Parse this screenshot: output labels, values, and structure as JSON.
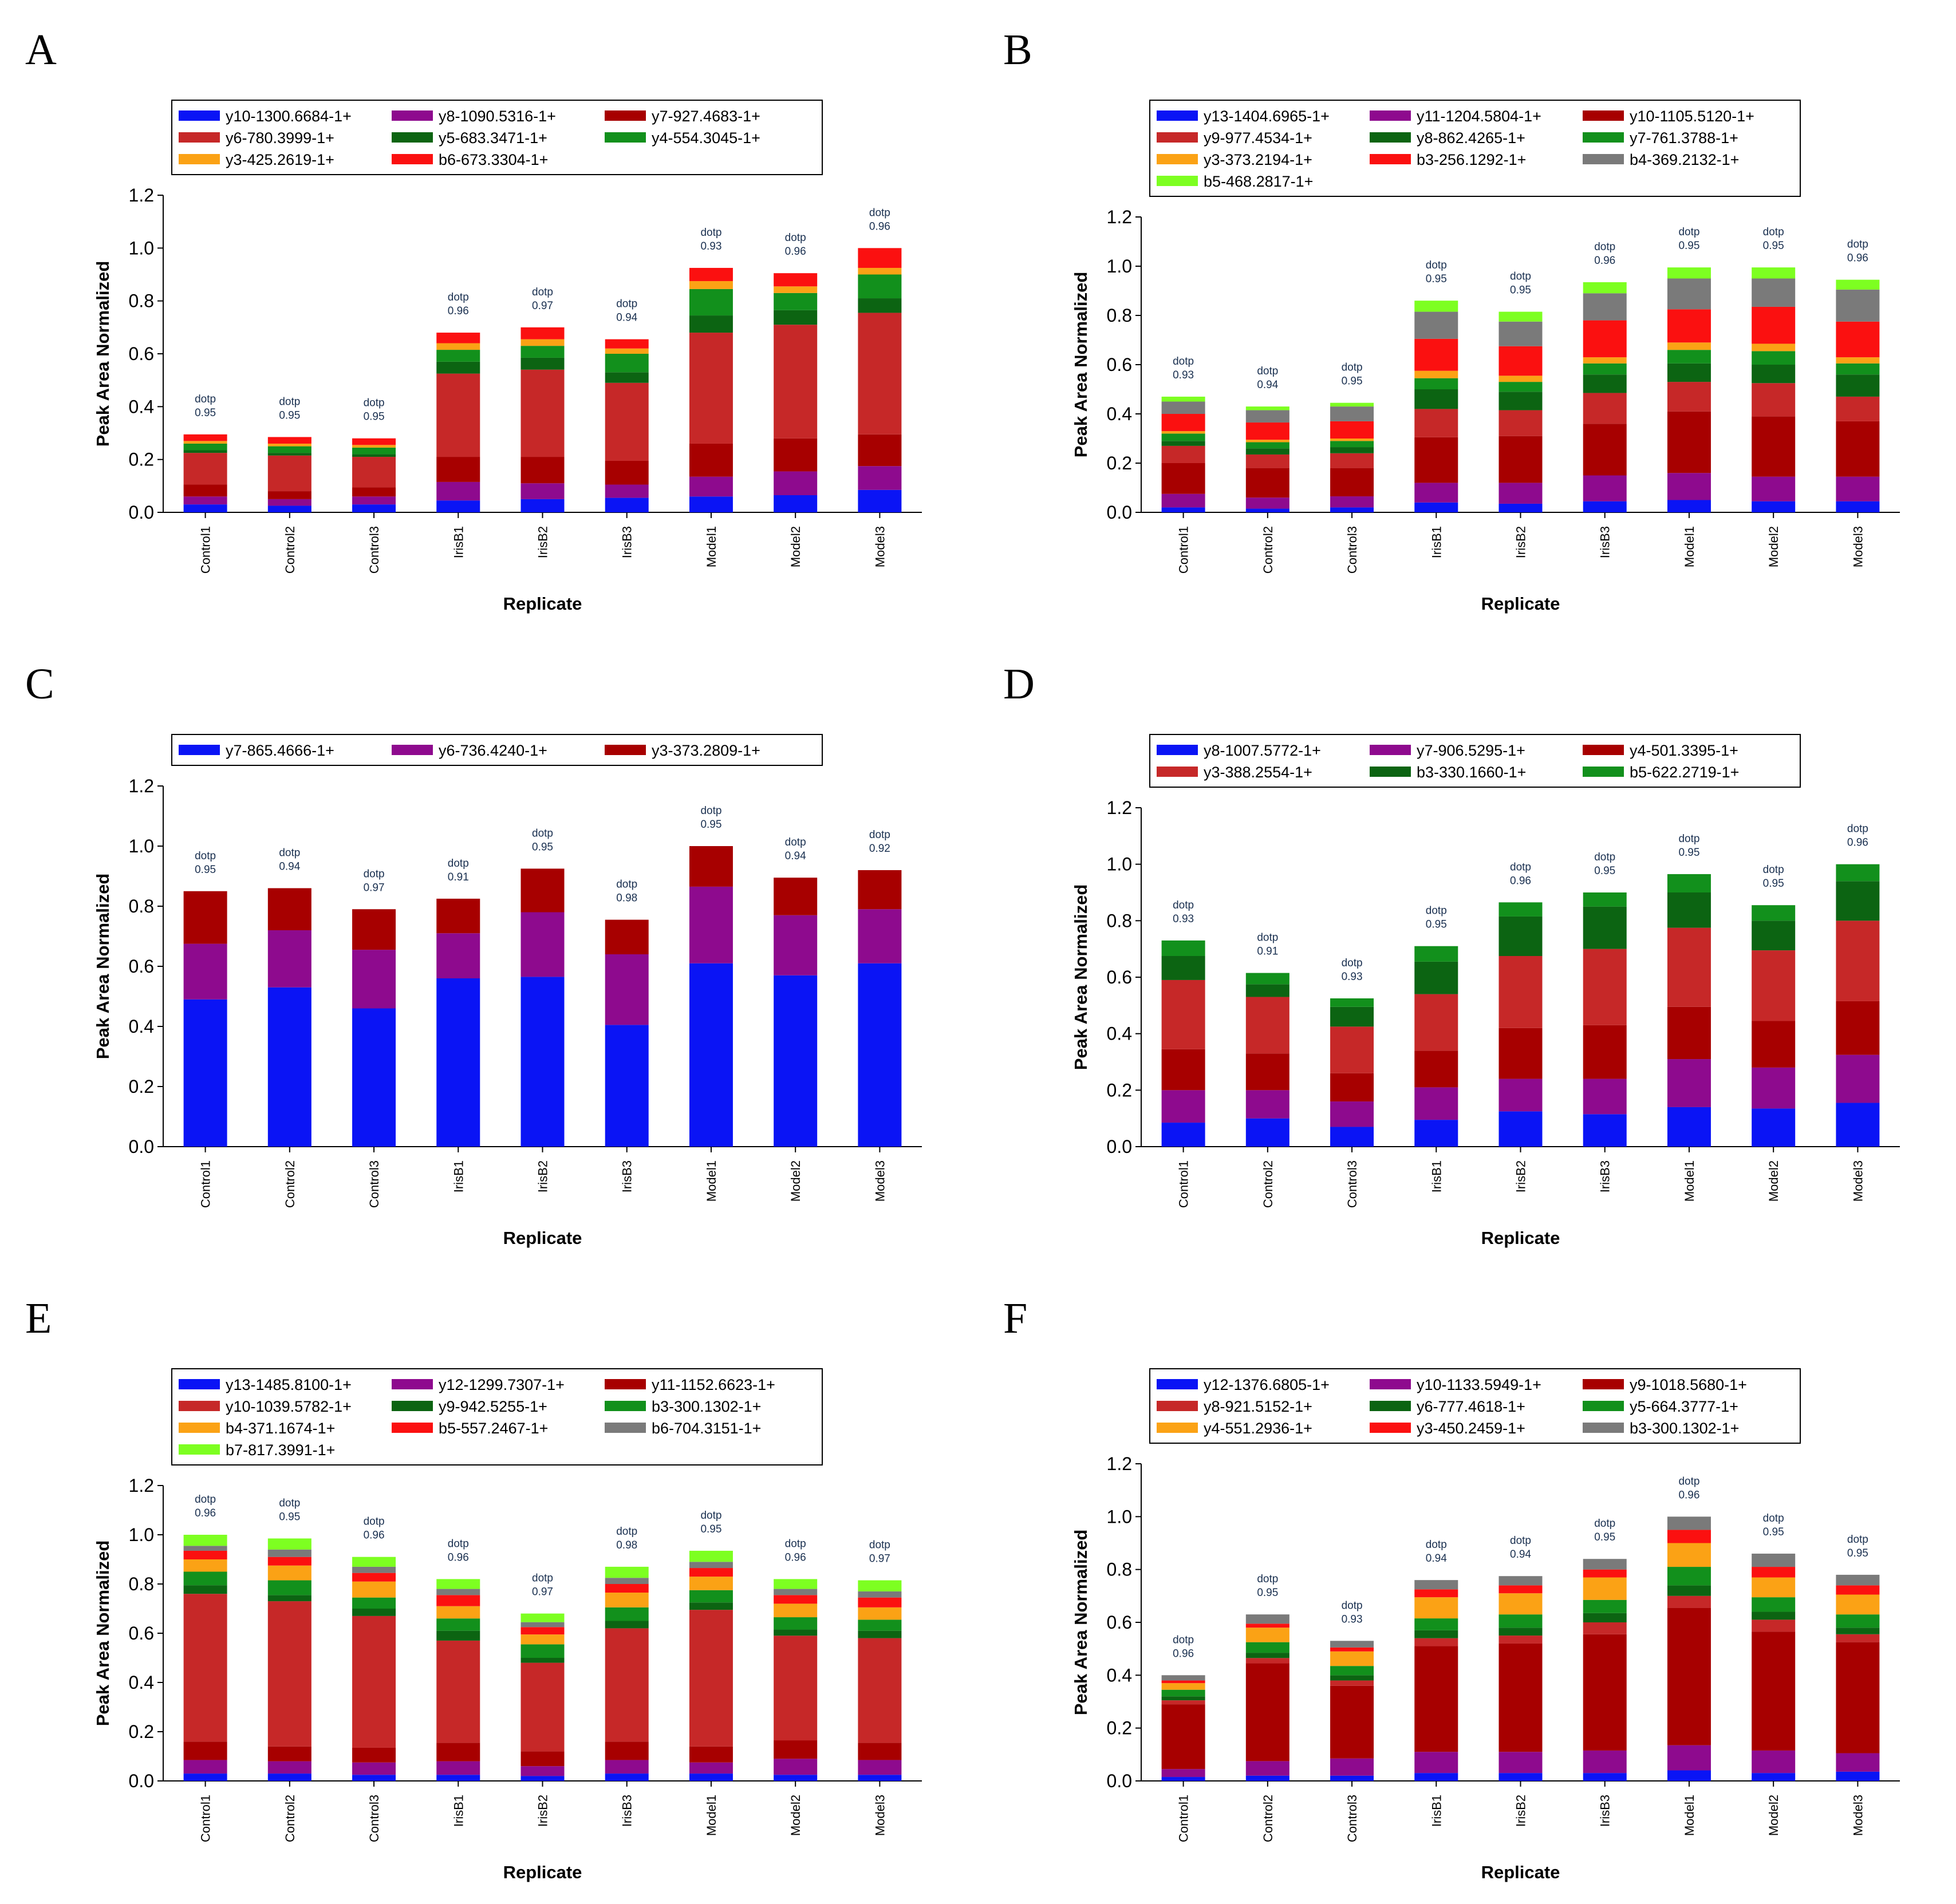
{
  "figure": {
    "replicates": [
      "Control1",
      "Control2",
      "Control3",
      "IrisB1",
      "IrisB2",
      "IrisB3",
      "Model1",
      "Model2",
      "Model3"
    ]
  },
  "chart_data": [
    {
      "panel": "A",
      "type": "bar",
      "stacked": true,
      "xlabel": "Replicate",
      "ylabel": "Peak Area Normalized",
      "ylim": [
        0,
        1.2
      ],
      "yticks": [
        "0.0",
        "0.2",
        "0.4",
        "0.6",
        "0.8",
        "1.0",
        "1.2"
      ],
      "categories": [
        "Control1",
        "Control2",
        "Control3",
        "IrisB1",
        "IrisB2",
        "IrisB3",
        "Model1",
        "Model2",
        "Model3"
      ],
      "dotp": [
        "0.95",
        "0.95",
        "0.95",
        "0.96",
        "0.97",
        "0.94",
        "0.93",
        "0.96",
        "0.96"
      ],
      "series": [
        {
          "name": "y10-1300.6684-1+",
          "color": "#0a14f5",
          "values": [
            0.03,
            0.025,
            0.03,
            0.045,
            0.05,
            0.055,
            0.06,
            0.065,
            0.085
          ]
        },
        {
          "name": "y8-1090.5316-1+",
          "color": "#8e0a8e",
          "values": [
            0.03,
            0.025,
            0.03,
            0.07,
            0.06,
            0.05,
            0.075,
            0.09,
            0.09
          ]
        },
        {
          "name": "y7-927.4683-1+",
          "color": "#a70000",
          "values": [
            0.045,
            0.03,
            0.035,
            0.095,
            0.1,
            0.09,
            0.125,
            0.125,
            0.12
          ]
        },
        {
          "name": "y6-780.3999-1+",
          "color": "#c62828",
          "values": [
            0.12,
            0.135,
            0.115,
            0.315,
            0.33,
            0.295,
            0.42,
            0.43,
            0.46
          ]
        },
        {
          "name": "y5-683.3471-1+",
          "color": "#0c6412",
          "values": [
            0.01,
            0.01,
            0.01,
            0.045,
            0.045,
            0.04,
            0.065,
            0.055,
            0.055
          ]
        },
        {
          "name": "y4-554.3045-1+",
          "color": "#12901c",
          "values": [
            0.025,
            0.025,
            0.025,
            0.045,
            0.045,
            0.07,
            0.1,
            0.065,
            0.09
          ]
        },
        {
          "name": "y3-425.2619-1+",
          "color": "#fba215",
          "values": [
            0.01,
            0.01,
            0.01,
            0.025,
            0.025,
            0.02,
            0.03,
            0.025,
            0.025
          ]
        },
        {
          "name": "b6-673.3304-1+",
          "color": "#fb1010",
          "values": [
            0.025,
            0.025,
            0.025,
            0.04,
            0.045,
            0.035,
            0.05,
            0.05,
            0.075
          ]
        }
      ],
      "legend": {
        "rows": [
          [
            "y10-1300.6684-1+",
            "y8-1090.5316-1+",
            "y7-927.4683-1+"
          ],
          [
            "y6-780.3999-1+",
            "y5-683.3471-1+",
            "y4-554.3045-1+"
          ],
          [
            "y3-425.2619-1+",
            "b6-673.3304-1+"
          ]
        ]
      }
    },
    {
      "panel": "B",
      "type": "bar",
      "stacked": true,
      "xlabel": "Replicate",
      "ylabel": "Peak Area Normalized",
      "ylim": [
        0,
        1.2
      ],
      "yticks": [
        "0.0",
        "0.2",
        "0.4",
        "0.6",
        "0.8",
        "1.0",
        "1.2"
      ],
      "categories": [
        "Control1",
        "Control2",
        "Control3",
        "IrisB1",
        "IrisB2",
        "IrisB3",
        "Model1",
        "Model2",
        "Model3"
      ],
      "dotp": [
        "0.93",
        "0.94",
        "0.95",
        "0.95",
        "0.95",
        "0.96",
        "0.95",
        "0.95",
        "0.96"
      ],
      "series": [
        {
          "name": "y13-1404.6965-1+",
          "color": "#0a14f5",
          "values": [
            0.02,
            0.015,
            0.02,
            0.04,
            0.035,
            0.045,
            0.05,
            0.045,
            0.045
          ]
        },
        {
          "name": "y11-1204.5804-1+",
          "color": "#8e0a8e",
          "values": [
            0.055,
            0.045,
            0.045,
            0.08,
            0.085,
            0.105,
            0.11,
            0.1,
            0.1
          ]
        },
        {
          "name": "y10-1105.5120-1+",
          "color": "#a70000",
          "values": [
            0.125,
            0.12,
            0.115,
            0.185,
            0.19,
            0.21,
            0.25,
            0.245,
            0.225
          ]
        },
        {
          "name": "y9-977.4534-1+",
          "color": "#c62828",
          "values": [
            0.07,
            0.055,
            0.06,
            0.115,
            0.105,
            0.125,
            0.12,
            0.135,
            0.1
          ]
        },
        {
          "name": "y8-862.4265-1+",
          "color": "#0c6412",
          "values": [
            0.02,
            0.025,
            0.025,
            0.08,
            0.075,
            0.075,
            0.075,
            0.075,
            0.09
          ]
        },
        {
          "name": "y7-761.3788-1+",
          "color": "#12901c",
          "values": [
            0.03,
            0.025,
            0.025,
            0.045,
            0.04,
            0.045,
            0.055,
            0.055,
            0.045
          ]
        },
        {
          "name": "y3-373.2194-1+",
          "color": "#fba215",
          "values": [
            0.01,
            0.01,
            0.01,
            0.03,
            0.025,
            0.025,
            0.03,
            0.03,
            0.025
          ]
        },
        {
          "name": "b3-256.1292-1+",
          "color": "#fb1010",
          "values": [
            0.07,
            0.07,
            0.07,
            0.13,
            0.12,
            0.15,
            0.135,
            0.15,
            0.145
          ]
        },
        {
          "name": "b4-369.2132-1+",
          "color": "#7a7a7a",
          "values": [
            0.05,
            0.05,
            0.06,
            0.11,
            0.1,
            0.11,
            0.125,
            0.115,
            0.13
          ]
        },
        {
          "name": "b5-468.2817-1+",
          "color": "#7dff21",
          "values": [
            0.02,
            0.015,
            0.015,
            0.045,
            0.04,
            0.045,
            0.045,
            0.045,
            0.04
          ]
        }
      ],
      "legend": {
        "rows": [
          [
            "y13-1404.6965-1+",
            "y11-1204.5804-1+",
            "y10-1105.5120-1+"
          ],
          [
            "y9-977.4534-1+",
            "y8-862.4265-1+",
            "y7-761.3788-1+"
          ],
          [
            "y3-373.2194-1+",
            "b3-256.1292-1+",
            "b4-369.2132-1+"
          ],
          [
            "b5-468.2817-1+"
          ]
        ]
      }
    },
    {
      "panel": "C",
      "type": "bar",
      "stacked": true,
      "xlabel": "Replicate",
      "ylabel": "Peak Area Normalized",
      "ylim": [
        0,
        1.2
      ],
      "yticks": [
        "0.0",
        "0.2",
        "0.4",
        "0.6",
        "0.8",
        "1.0",
        "1.2"
      ],
      "categories": [
        "Control1",
        "Control2",
        "Control3",
        "IrisB1",
        "IrisB2",
        "IrisB3",
        "Model1",
        "Model2",
        "Model3"
      ],
      "dotp": [
        "0.95",
        "0.94",
        "0.97",
        "0.91",
        "0.95",
        "0.98",
        "0.95",
        "0.94",
        "0.92"
      ],
      "series": [
        {
          "name": "y7-865.4666-1+",
          "color": "#0a14f5",
          "values": [
            0.49,
            0.53,
            0.46,
            0.56,
            0.565,
            0.405,
            0.61,
            0.57,
            0.61
          ]
        },
        {
          "name": "y6-736.4240-1+",
          "color": "#8e0a8e",
          "values": [
            0.185,
            0.19,
            0.195,
            0.15,
            0.215,
            0.235,
            0.255,
            0.2,
            0.18
          ]
        },
        {
          "name": "y3-373.2809-1+",
          "color": "#a70000",
          "values": [
            0.175,
            0.14,
            0.135,
            0.115,
            0.145,
            0.115,
            0.135,
            0.125,
            0.13
          ]
        }
      ],
      "legend": {
        "rows": [
          [
            "y7-865.4666-1+",
            "y6-736.4240-1+",
            "y3-373.2809-1+"
          ]
        ]
      }
    },
    {
      "panel": "D",
      "type": "bar",
      "stacked": true,
      "xlabel": "Replicate",
      "ylabel": "Peak Area Normalized",
      "ylim": [
        0,
        1.2
      ],
      "yticks": [
        "0.0",
        "0.2",
        "0.4",
        "0.6",
        "0.8",
        "1.0",
        "1.2"
      ],
      "categories": [
        "Control1",
        "Control2",
        "Control3",
        "IrisB1",
        "IrisB2",
        "IrisB3",
        "Model1",
        "Model2",
        "Model3"
      ],
      "dotp": [
        "0.93",
        "0.91",
        "0.93",
        "0.95",
        "0.96",
        "0.95",
        "0.95",
        "0.95",
        "0.96"
      ],
      "series": [
        {
          "name": "y8-1007.5772-1+",
          "color": "#0a14f5",
          "values": [
            0.085,
            0.1,
            0.07,
            0.095,
            0.125,
            0.115,
            0.14,
            0.135,
            0.155
          ]
        },
        {
          "name": "y7-906.5295-1+",
          "color": "#8e0a8e",
          "values": [
            0.115,
            0.1,
            0.09,
            0.115,
            0.115,
            0.125,
            0.17,
            0.145,
            0.17
          ]
        },
        {
          "name": "y4-501.3395-1+",
          "color": "#a70000",
          "values": [
            0.145,
            0.13,
            0.1,
            0.13,
            0.18,
            0.19,
            0.185,
            0.165,
            0.19
          ]
        },
        {
          "name": "y3-388.2554-1+",
          "color": "#c62828",
          "values": [
            0.245,
            0.2,
            0.165,
            0.2,
            0.255,
            0.27,
            0.28,
            0.25,
            0.285
          ]
        },
        {
          "name": "b3-330.1660-1+",
          "color": "#0c6412",
          "values": [
            0.085,
            0.045,
            0.07,
            0.115,
            0.14,
            0.15,
            0.125,
            0.105,
            0.14
          ]
        },
        {
          "name": "b5-622.2719-1+",
          "color": "#12901c",
          "values": [
            0.055,
            0.04,
            0.03,
            0.055,
            0.05,
            0.05,
            0.065,
            0.055,
            0.06
          ]
        }
      ],
      "legend": {
        "rows": [
          [
            "y8-1007.5772-1+",
            "y7-906.5295-1+",
            "y4-501.3395-1+"
          ],
          [
            "y3-388.2554-1+",
            "b3-330.1660-1+",
            "b5-622.2719-1+"
          ]
        ]
      }
    },
    {
      "panel": "E",
      "type": "bar",
      "stacked": true,
      "xlabel": "Replicate",
      "ylabel": "Peak Area Normalized",
      "ylim": [
        0,
        1.2
      ],
      "yticks": [
        "0.0",
        "0.2",
        "0.4",
        "0.6",
        "0.8",
        "1.0",
        "1.2"
      ],
      "categories": [
        "Control1",
        "Control2",
        "Control3",
        "IrisB1",
        "IrisB2",
        "IrisB3",
        "Model1",
        "Model2",
        "Model3"
      ],
      "dotp": [
        "0.96",
        "0.95",
        "0.96",
        "0.96",
        "0.97",
        "0.98",
        "0.95",
        "0.96",
        "0.97"
      ],
      "series": [
        {
          "name": "y13-1485.8100-1+",
          "color": "#0a14f5",
          "values": [
            0.03,
            0.03,
            0.025,
            0.025,
            0.02,
            0.03,
            0.03,
            0.025,
            0.025
          ]
        },
        {
          "name": "y12-1299.7307-1+",
          "color": "#8e0a8e",
          "values": [
            0.055,
            0.05,
            0.05,
            0.055,
            0.04,
            0.055,
            0.045,
            0.065,
            0.06
          ]
        },
        {
          "name": "y11-1152.6623-1+",
          "color": "#a70000",
          "values": [
            0.075,
            0.06,
            0.06,
            0.075,
            0.06,
            0.075,
            0.065,
            0.075,
            0.07
          ]
        },
        {
          "name": "y10-1039.5782-1+",
          "color": "#c62828",
          "values": [
            0.6,
            0.59,
            0.535,
            0.415,
            0.36,
            0.46,
            0.555,
            0.425,
            0.425
          ]
        },
        {
          "name": "y9-942.5255-1+",
          "color": "#0c6412",
          "values": [
            0.035,
            0.025,
            0.03,
            0.04,
            0.02,
            0.03,
            0.03,
            0.025,
            0.03
          ]
        },
        {
          "name": "b3-300.1302-1+",
          "color": "#12901c",
          "values": [
            0.055,
            0.06,
            0.045,
            0.05,
            0.055,
            0.055,
            0.05,
            0.05,
            0.045
          ]
        },
        {
          "name": "b4-371.1674-1+",
          "color": "#fba215",
          "values": [
            0.05,
            0.06,
            0.065,
            0.05,
            0.04,
            0.06,
            0.055,
            0.055,
            0.05
          ]
        },
        {
          "name": "b5-557.2467-1+",
          "color": "#fb1010",
          "values": [
            0.035,
            0.035,
            0.035,
            0.045,
            0.03,
            0.035,
            0.035,
            0.035,
            0.04
          ]
        },
        {
          "name": "b6-704.3151-1+",
          "color": "#7a7a7a",
          "values": [
            0.02,
            0.03,
            0.025,
            0.025,
            0.02,
            0.025,
            0.025,
            0.025,
            0.025
          ]
        },
        {
          "name": "b7-817.3991-1+",
          "color": "#7dff21",
          "values": [
            0.045,
            0.045,
            0.04,
            0.04,
            0.035,
            0.045,
            0.045,
            0.04,
            0.045
          ]
        }
      ],
      "legend": {
        "rows": [
          [
            "y13-1485.8100-1+",
            "y12-1299.7307-1+",
            "y11-1152.6623-1+"
          ],
          [
            "y10-1039.5782-1+",
            "y9-942.5255-1+",
            "b3-300.1302-1+"
          ],
          [
            "b4-371.1674-1+",
            "b5-557.2467-1+",
            "b6-704.3151-1+"
          ],
          [
            "b7-817.3991-1+"
          ]
        ]
      }
    },
    {
      "panel": "F",
      "type": "bar",
      "stacked": true,
      "xlabel": "Replicate",
      "ylabel": "Peak Area Normalized",
      "ylim": [
        0,
        1.2
      ],
      "yticks": [
        "0.0",
        "0.2",
        "0.4",
        "0.6",
        "0.8",
        "1.0",
        "1.2"
      ],
      "categories": [
        "Control1",
        "Control2",
        "Control3",
        "IrisB1",
        "IrisB2",
        "IrisB3",
        "Model1",
        "Model2",
        "Model3"
      ],
      "dotp": [
        "0.96",
        "0.95",
        "0.93",
        "0.94",
        "0.94",
        "0.95",
        "0.96",
        "0.95",
        "0.95"
      ],
      "series": [
        {
          "name": "y12-1376.6805-1+",
          "color": "#0a14f5",
          "values": [
            0.015,
            0.02,
            0.02,
            0.03,
            0.03,
            0.03,
            0.04,
            0.03,
            0.035
          ]
        },
        {
          "name": "y10-1133.5949-1+",
          "color": "#8e0a8e",
          "values": [
            0.03,
            0.055,
            0.065,
            0.08,
            0.08,
            0.085,
            0.095,
            0.085,
            0.07
          ]
        },
        {
          "name": "y9-1018.5680-1+",
          "color": "#a70000",
          "values": [
            0.245,
            0.37,
            0.275,
            0.4,
            0.41,
            0.44,
            0.52,
            0.45,
            0.42
          ]
        },
        {
          "name": "y8-921.5152-1+",
          "color": "#c62828",
          "values": [
            0.015,
            0.02,
            0.02,
            0.03,
            0.03,
            0.045,
            0.045,
            0.045,
            0.03
          ]
        },
        {
          "name": "y6-777.4618-1+",
          "color": "#0c6412",
          "values": [
            0.015,
            0.02,
            0.02,
            0.03,
            0.03,
            0.035,
            0.04,
            0.03,
            0.025
          ]
        },
        {
          "name": "y5-664.3777-1+",
          "color": "#12901c",
          "values": [
            0.025,
            0.04,
            0.035,
            0.045,
            0.05,
            0.05,
            0.07,
            0.055,
            0.05
          ]
        },
        {
          "name": "y4-551.2936-1+",
          "color": "#fba215",
          "values": [
            0.025,
            0.055,
            0.055,
            0.08,
            0.08,
            0.085,
            0.09,
            0.075,
            0.075
          ]
        },
        {
          "name": "y3-450.2459-1+",
          "color": "#fb1010",
          "values": [
            0.01,
            0.015,
            0.015,
            0.03,
            0.03,
            0.03,
            0.05,
            0.04,
            0.035
          ]
        },
        {
          "name": "b3-300.1302-1+",
          "color": "#7a7a7a",
          "values": [
            0.02,
            0.035,
            0.025,
            0.035,
            0.035,
            0.04,
            0.05,
            0.05,
            0.04
          ]
        }
      ],
      "legend": {
        "rows": [
          [
            "y12-1376.6805-1+",
            "y10-1133.5949-1+",
            "y9-1018.5680-1+"
          ],
          [
            "y8-921.5152-1+",
            "y6-777.4618-1+",
            "y5-664.3777-1+"
          ],
          [
            "y4-551.2936-1+",
            "y3-450.2459-1+",
            "b3-300.1302-1+"
          ]
        ]
      }
    }
  ]
}
